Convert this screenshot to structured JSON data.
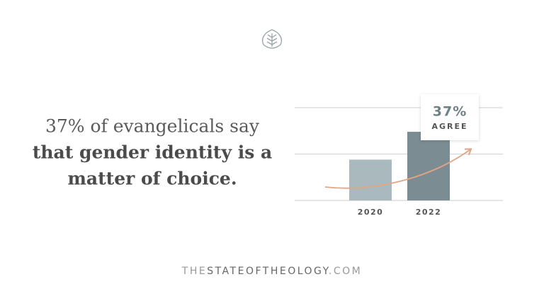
{
  "chart_data": {
    "type": "bar",
    "headline": [
      "37% of evangelicals say",
      "that gender identity is a",
      "matter of choice."
    ],
    "categories": [
      "2020",
      "2022"
    ],
    "values": [
      22,
      37
    ],
    "value_labels": [
      null,
      "37%"
    ],
    "annotation": "AGREE",
    "colors": [
      "#a9b9bd",
      "#7b8c93"
    ],
    "ylim": [
      0,
      50
    ],
    "yticks": [
      0,
      25,
      50
    ],
    "grid": true,
    "footer": [
      "THE",
      "STATEOFTHEOLOGY",
      ".COM"
    ]
  }
}
